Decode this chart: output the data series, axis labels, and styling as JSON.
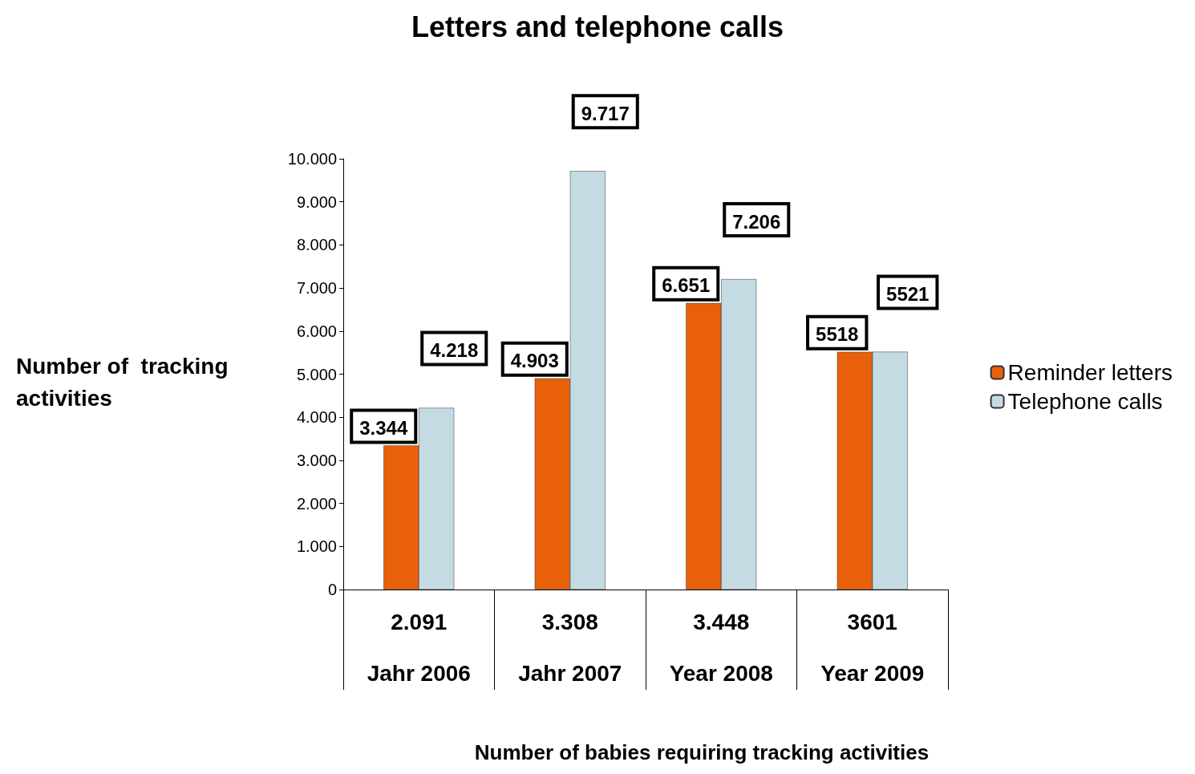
{
  "chart_data": {
    "type": "bar",
    "title": "Letters and telephone calls",
    "xlabel": "Number of babies requiring tracking activities",
    "ylabel": "Number of  tracking\nactivities",
    "categories": [
      "2.091\n\nJahr 2006",
      "3.308\n\nJahr 2007",
      "3.448\n\nYear 2008",
      "3601\n\nYear 2009"
    ],
    "series": [
      {
        "name": "Reminder letters",
        "color": "#e8610a",
        "values": [
          3344,
          4903,
          6651,
          5518
        ],
        "value_labels": [
          "3.344",
          "4.903",
          "6.651",
          "5518"
        ]
      },
      {
        "name": "Telephone calls",
        "color": "#c5dbe3",
        "values": [
          4218,
          9717,
          7206,
          5521
        ],
        "value_labels": [
          "4.218",
          "9.717",
          "7.206",
          "5521"
        ]
      }
    ],
    "ylim": [
      0,
      10000
    ],
    "yticks": [
      0,
      {
        "value": 1000,
        "label": "1.000"
      },
      {
        "value": 2000,
        "label": "2.000"
      },
      {
        "value": 3000,
        "label": "3.000"
      },
      {
        "value": 4000,
        "label": "4.000"
      },
      {
        "value": 5000,
        "label": "5.000"
      },
      {
        "value": 6000,
        "label": "6.000"
      },
      {
        "value": 7000,
        "label": "7.000"
      },
      {
        "value": 8000,
        "label": "8.000"
      },
      {
        "value": 9000,
        "label": "9.000"
      },
      {
        "value": 10000,
        "label": "10.000"
      }
    ],
    "grid": false,
    "legend": "right"
  }
}
